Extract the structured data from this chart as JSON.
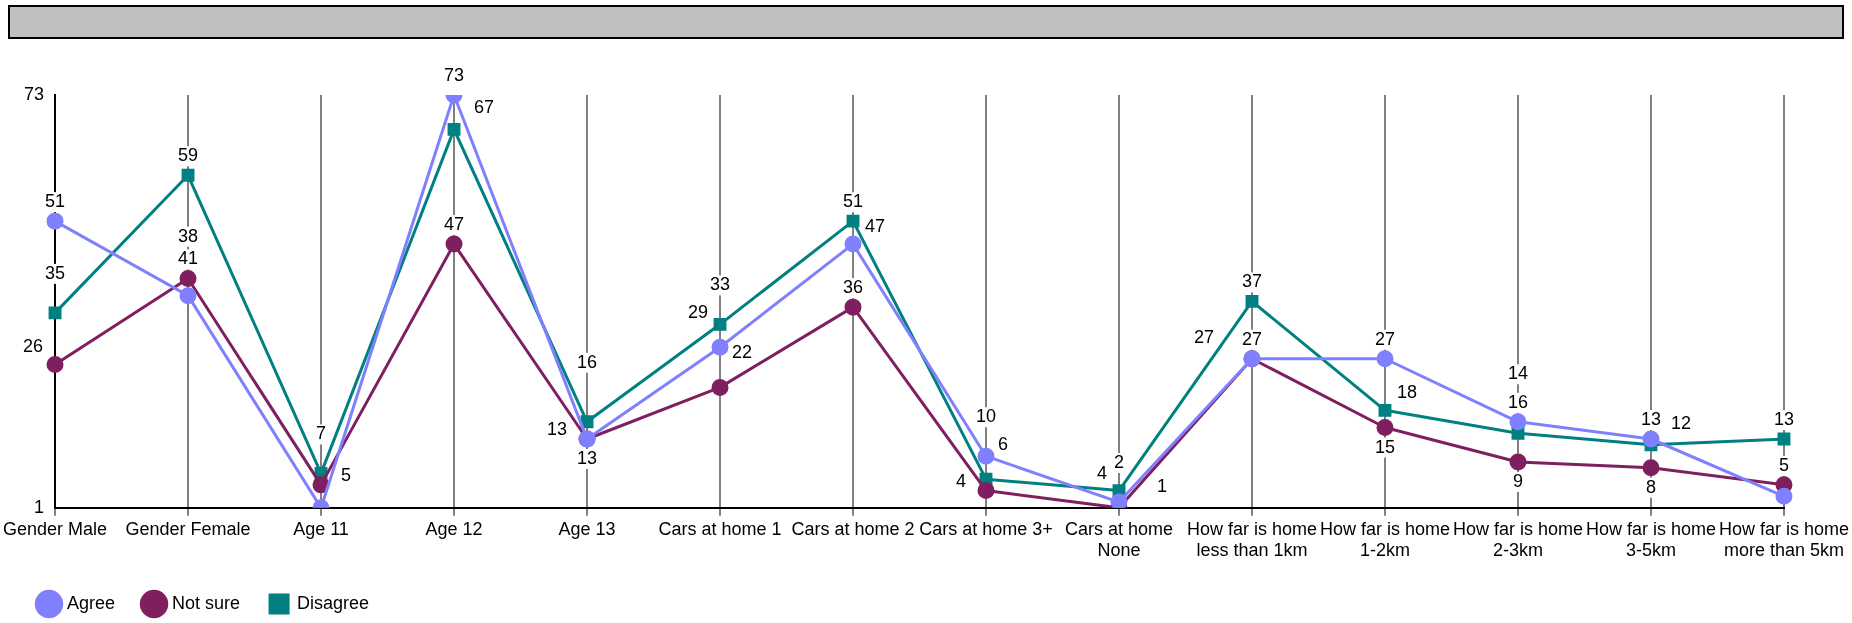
{
  "chart_data": {
    "type": "line",
    "categories": [
      "Gender Male",
      "Gender Female",
      "Age 11",
      "Age 12",
      "Age 13",
      "Cars at home 1",
      "Cars at home 2",
      "Cars at home 3+",
      "Cars at home None",
      "How far is home less than 1km",
      "How far is home 1-2km",
      "How far is home 2-3km",
      "How far is home 3-5km",
      "How far is home more than 5km"
    ],
    "series": [
      {
        "name": "Agree",
        "color": "#8080ff",
        "marker": "circle",
        "values": [
          51,
          38,
          1,
          73,
          13,
          29,
          47,
          10,
          2,
          27,
          27,
          16,
          13,
          3
        ],
        "value_labels": [
          "51",
          "38",
          null,
          "73",
          "13",
          "29",
          "47",
          "10",
          "2",
          "27",
          "27",
          "16",
          "13",
          null
        ]
      },
      {
        "name": "Not sure",
        "color": "#7f1f5f",
        "marker": "circle",
        "values": [
          26,
          41,
          5,
          47,
          13,
          22,
          36,
          4,
          1,
          27,
          15,
          9,
          8,
          5
        ],
        "value_labels": [
          "26",
          "41",
          "5",
          "47",
          "13",
          "22",
          "36",
          "4",
          "1",
          "27",
          "15",
          "9",
          "8",
          "5"
        ]
      },
      {
        "name": "Disagree",
        "color": "#008080",
        "marker": "square",
        "values": [
          35,
          59,
          7,
          67,
          16,
          33,
          51,
          6,
          4,
          37,
          18,
          14,
          12,
          13
        ],
        "value_labels": [
          "35",
          "59",
          "7",
          "67",
          "16",
          "33",
          "51",
          "6",
          "4",
          "37",
          "18",
          "14",
          "12",
          "13"
        ]
      }
    ],
    "ylim": [
      1,
      73
    ],
    "yticks": [
      1,
      73
    ],
    "grid": "x",
    "legend": "bottom left",
    "line_style": "solid"
  }
}
